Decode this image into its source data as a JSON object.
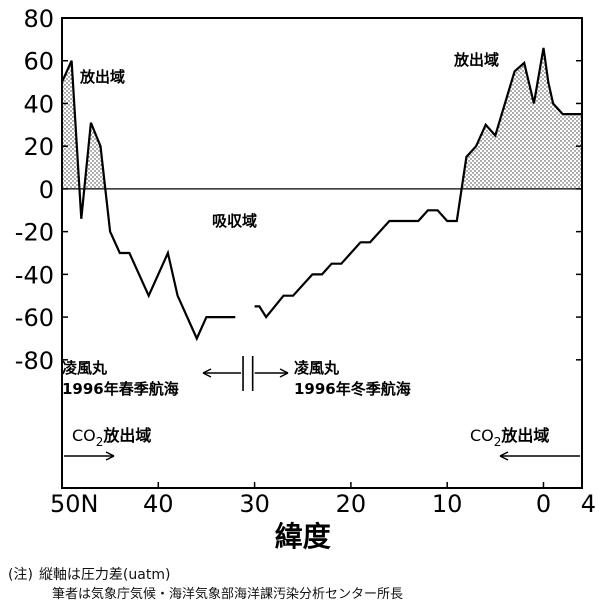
{
  "chart_data": {
    "type": "line",
    "xlabel": "緯度",
    "x_ticks": [
      {
        "value": 50,
        "label": "50N"
      },
      {
        "value": 40,
        "label": "40"
      },
      {
        "value": 30,
        "label": "30"
      },
      {
        "value": 20,
        "label": "20"
      },
      {
        "value": 10,
        "label": "10"
      },
      {
        "value": 0,
        "label": "0"
      },
      {
        "value": -4,
        "label": "4"
      }
    ],
    "xlim": [
      50,
      -4
    ],
    "ylim": [
      -140,
      80
    ],
    "y_ticks": [
      80,
      60,
      40,
      20,
      0,
      -20,
      -40,
      -60,
      -80
    ],
    "series": [
      {
        "segment": "spring",
        "points": [
          [
            50,
            50
          ],
          [
            49,
            60
          ],
          [
            48,
            -14
          ],
          [
            47,
            31
          ],
          [
            46,
            20
          ],
          [
            45,
            -20
          ],
          [
            44,
            -30
          ],
          [
            43,
            -30
          ],
          [
            41,
            -50
          ],
          [
            39,
            -30
          ],
          [
            38,
            -50
          ],
          [
            36,
            -70
          ],
          [
            35,
            -60
          ],
          [
            32,
            -60
          ]
        ]
      },
      {
        "segment": "winter",
        "points": [
          [
            30,
            -55
          ],
          [
            29.5,
            -55
          ],
          [
            28.8,
            -60
          ],
          [
            27,
            -50
          ],
          [
            26,
            -50
          ],
          [
            24,
            -40
          ],
          [
            23,
            -40
          ],
          [
            22,
            -35
          ],
          [
            21,
            -35
          ],
          [
            19,
            -25
          ],
          [
            18,
            -25
          ],
          [
            16,
            -15
          ],
          [
            13,
            -15
          ],
          [
            12,
            -10
          ],
          [
            11,
            -10
          ],
          [
            10,
            -15
          ],
          [
            9,
            -15
          ],
          [
            8,
            15
          ],
          [
            7,
            20
          ],
          [
            6,
            30
          ],
          [
            5,
            25
          ],
          [
            3,
            55
          ],
          [
            2,
            59
          ],
          [
            1,
            40
          ],
          [
            0,
            66
          ],
          [
            -0.5,
            50
          ],
          [
            -1,
            40
          ],
          [
            -2,
            35
          ],
          [
            -4,
            35
          ]
        ]
      }
    ],
    "annotations": {
      "release_left": "放出域",
      "release_right": "放出域",
      "absorb": "吸収域",
      "cruise_left": [
        "凌風丸",
        "1996年春季航海"
      ],
      "cruise_right": [
        "凌風丸",
        "1996年冬季航海"
      ],
      "co2_left": {
        "prefix": "CO",
        "sub": "2",
        "suffix": "放出域"
      },
      "co2_right": {
        "prefix": "CO",
        "sub": "2",
        "suffix": "放出域"
      }
    },
    "grid": false
  },
  "notes": {
    "line1_prefix": "(注)",
    "line1_text": "縦軸は圧力差(uatm)",
    "line2_text": "筆者は気象庁気候・海洋気象部海洋課汚染分析センター所長"
  }
}
